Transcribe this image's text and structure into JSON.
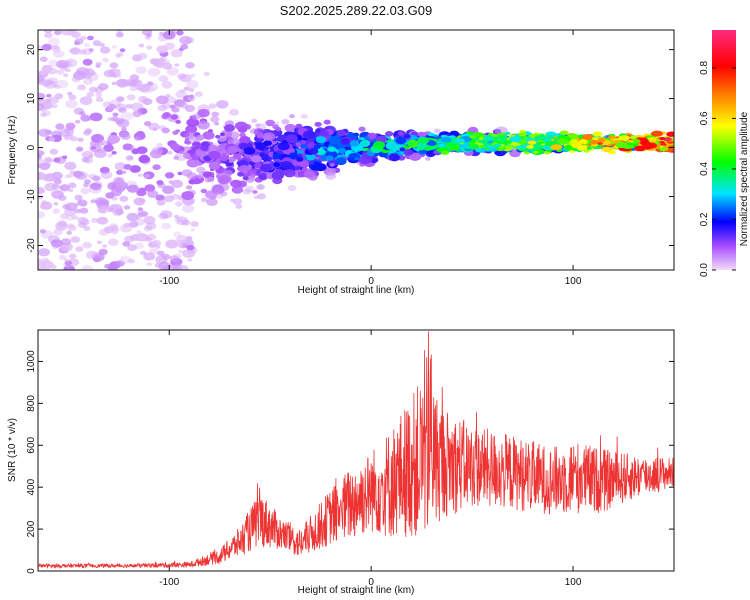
{
  "title": "S202.2025.289.22.03.G09",
  "chart_data": [
    {
      "type": "heatmap",
      "xlabel": "Height of straight line (km)",
      "ylabel": "Frequency (Hz)",
      "xlim": [
        -165,
        150
      ],
      "ylim": [
        -25,
        24
      ],
      "xticks": [
        -100,
        0,
        100
      ],
      "xtick_labels": [
        "-100",
        "0",
        "100"
      ],
      "yticks": [
        20,
        10,
        0,
        -10,
        -20
      ],
      "ytick_labels": [
        "20",
        "10",
        "0",
        "-10",
        "-20"
      ],
      "colorbar": {
        "label": "Normalized spectral amplitude",
        "range": [
          0,
          0.95
        ],
        "ticks": [
          0.0,
          0.2,
          0.4,
          0.6,
          0.8
        ],
        "tick_labels": [
          "0.0",
          "0.2",
          "0.4",
          "0.6",
          "0.8"
        ],
        "colors": [
          "#f0d6f7",
          "#8a00ff",
          "#0000ff",
          "#00e5ff",
          "#00ff00",
          "#ffff00",
          "#ff6600",
          "#ff0000",
          "#ff2a7f"
        ]
      },
      "ridge": {
        "description_points_x": [
          -165,
          -100,
          -60,
          -20,
          0,
          40,
          80,
          110,
          150
        ],
        "center_freq": [
          0,
          -1,
          -2,
          0,
          0,
          1,
          1,
          1,
          1
        ],
        "spread": [
          24,
          18,
          8,
          5,
          3,
          2,
          2,
          1,
          0.5
        ],
        "peak_amplitude": [
          0.05,
          0.08,
          0.15,
          0.3,
          0.35,
          0.5,
          0.6,
          0.75,
          0.95
        ]
      }
    },
    {
      "type": "line",
      "xlabel": "Height of straight line (km)",
      "ylabel": "SNR (10 * v/v)",
      "xlim": [
        -165,
        150
      ],
      "ylim": [
        0,
        1150
      ],
      "xticks": [
        -100,
        0,
        100
      ],
      "xtick_labels": [
        "-100",
        "0",
        "100"
      ],
      "yticks": [
        0,
        200,
        400,
        600,
        800,
        1000
      ],
      "ytick_labels": [
        "0",
        "200",
        "400",
        "600",
        "800",
        "1000"
      ],
      "color": "#ee3333",
      "envelope": {
        "x": [
          -165,
          -120,
          -90,
          -75,
          -65,
          -55,
          -45,
          -35,
          -20,
          -10,
          0,
          10,
          20,
          28,
          35,
          50,
          70,
          90,
          100,
          115,
          130,
          150
        ],
        "mean": [
          25,
          25,
          30,
          70,
          140,
          250,
          180,
          130,
          260,
          320,
          380,
          420,
          500,
          560,
          520,
          500,
          470,
          430,
          450,
          430,
          450,
          470
        ],
        "spread": [
          10,
          10,
          15,
          40,
          80,
          150,
          90,
          80,
          150,
          200,
          220,
          300,
          380,
          450,
          300,
          220,
          200,
          180,
          200,
          170,
          120,
          80
        ]
      }
    }
  ]
}
